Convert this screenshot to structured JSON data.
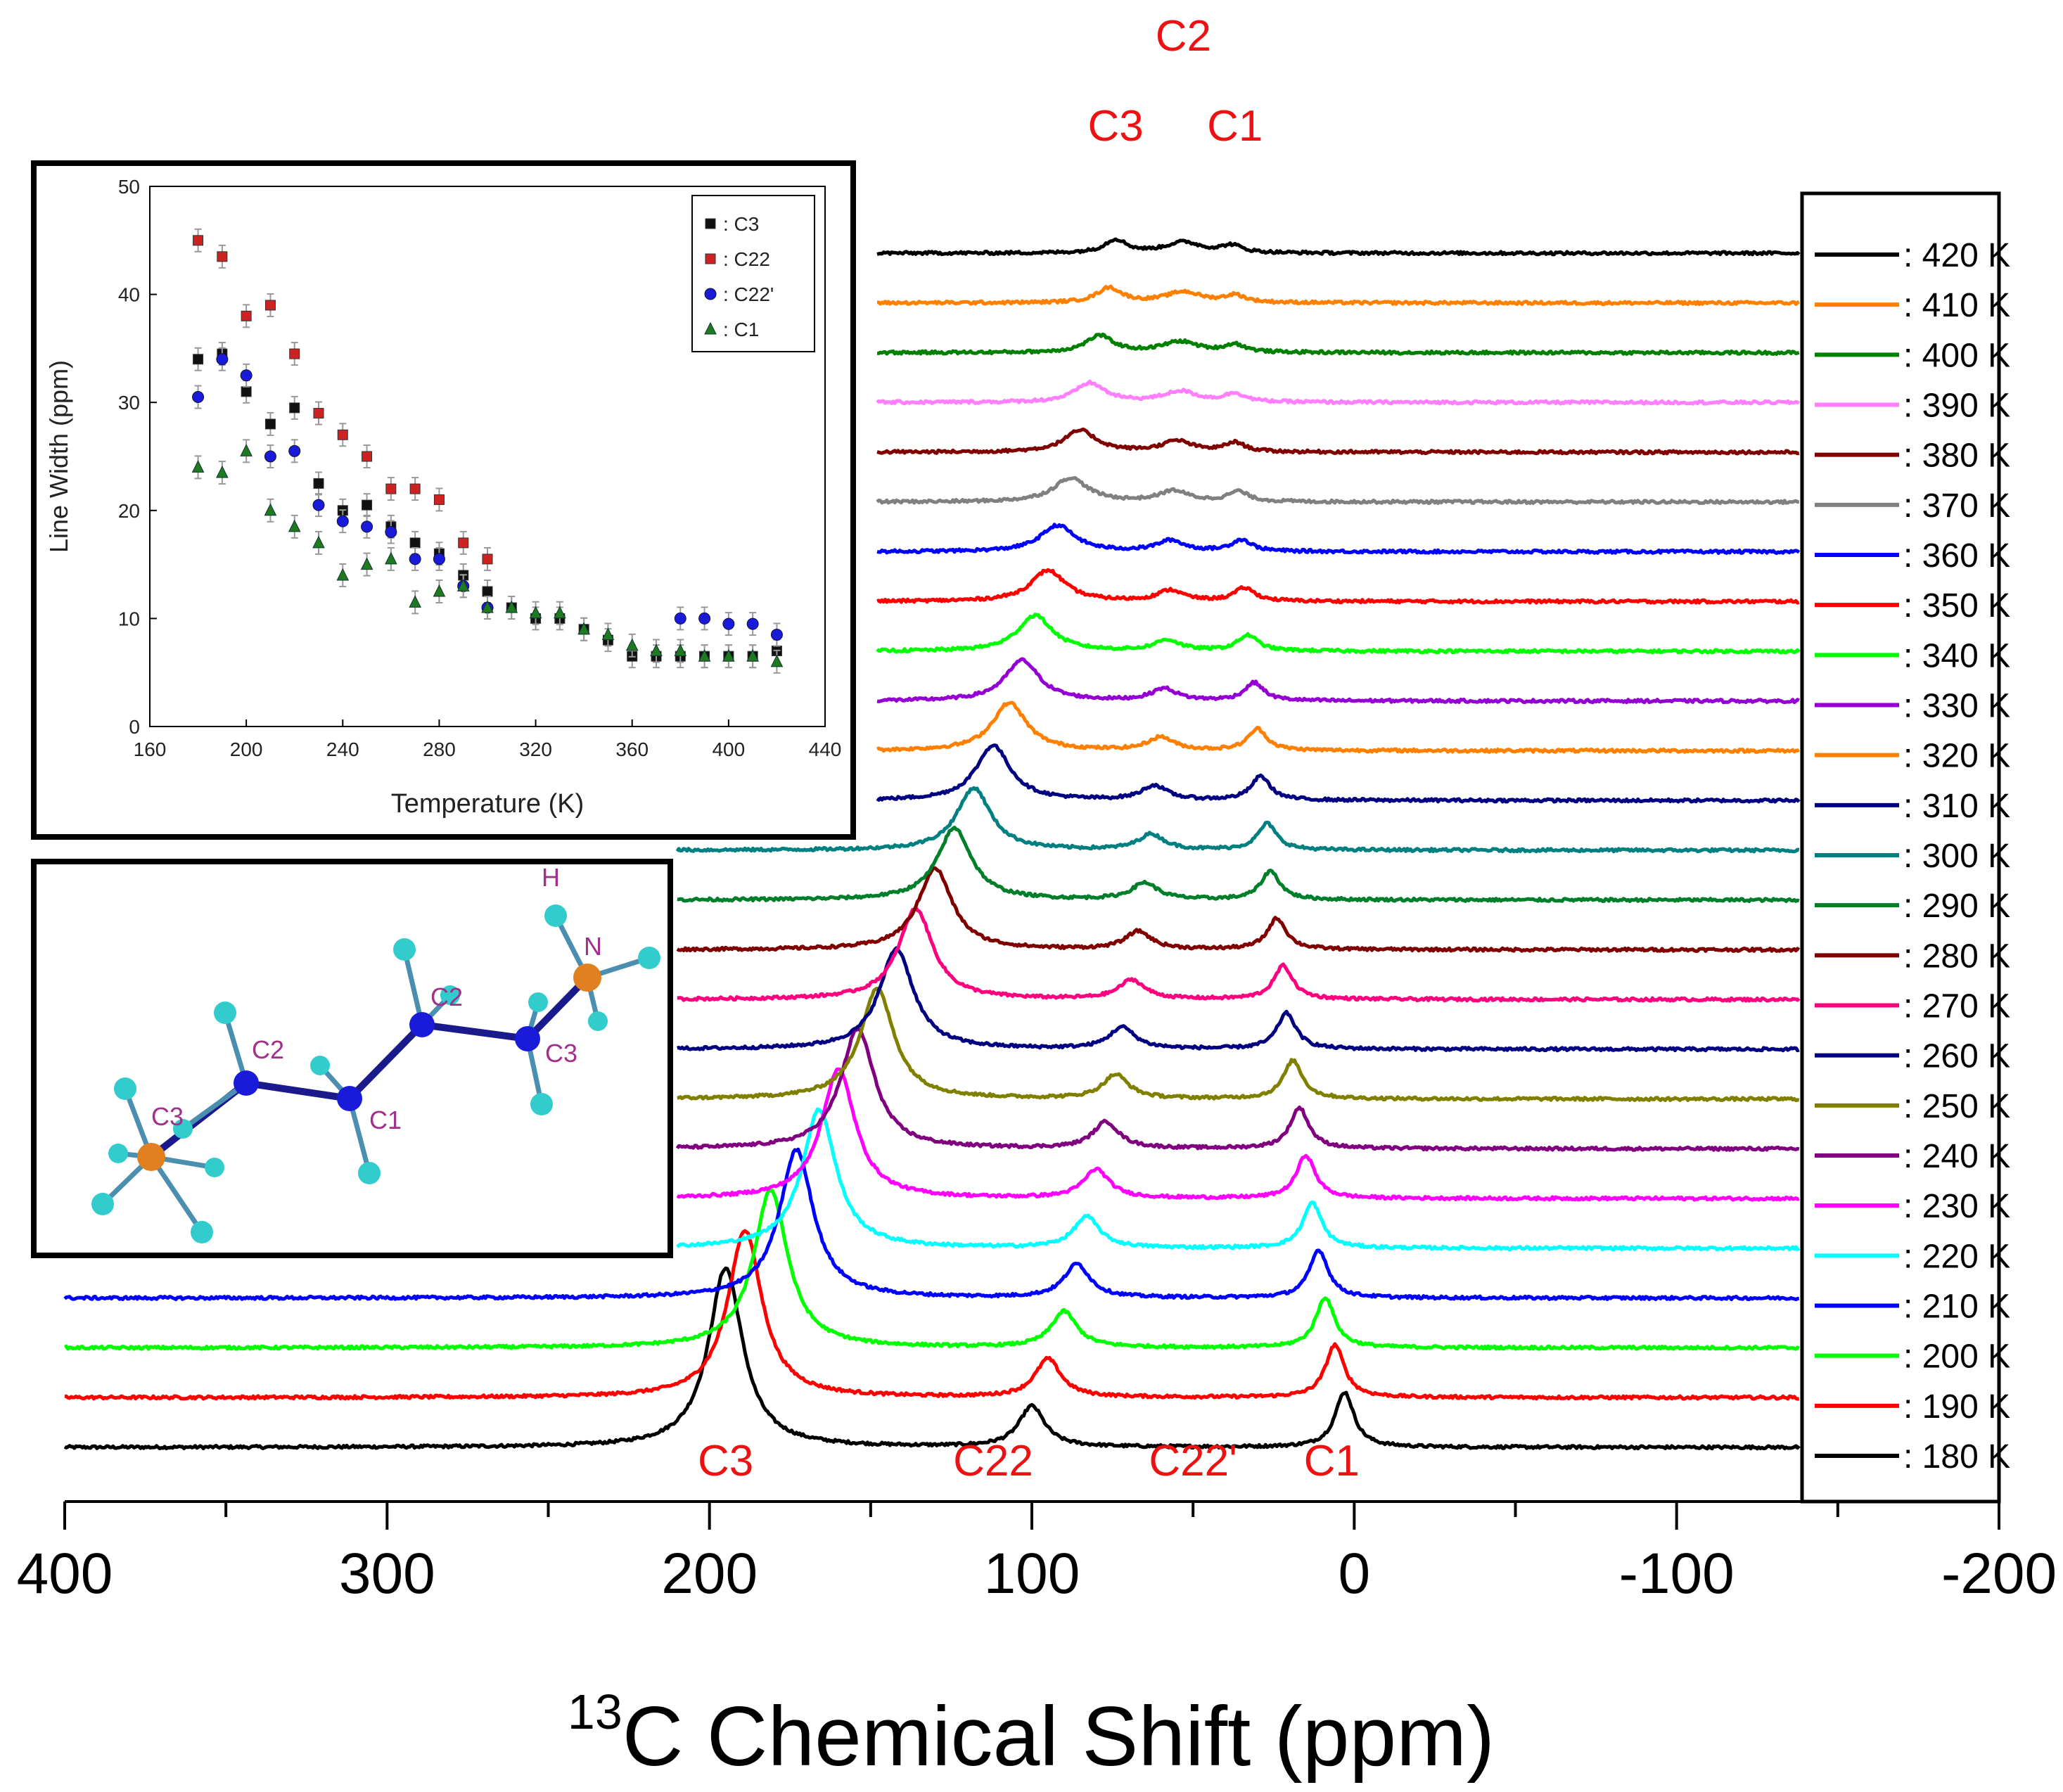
{
  "chart_data": [
    {
      "type": "line",
      "subtype": "stacked-spectra",
      "xlabel_sup": "13",
      "xlabel_rest": "C Chemical Shift (ppm)",
      "xlim": [
        400,
        -200
      ],
      "xticks": [
        400,
        300,
        200,
        100,
        0,
        -100,
        -200
      ],
      "xtick_labels": [
        "400",
        "300",
        "200",
        "100",
        "0",
        "-100",
        "-200"
      ],
      "top_peak_labels": [
        {
          "label": "C3",
          "ppm": 74
        },
        {
          "label": "C2",
          "ppm": 53
        },
        {
          "label": "C1",
          "ppm": 37
        }
      ],
      "bottom_peak_labels": [
        {
          "label": "C3",
          "ppm": 195
        },
        {
          "label": "C22",
          "ppm": 112
        },
        {
          "label": "C22'",
          "ppm": 50
        },
        {
          "label": "C1",
          "ppm": 7
        }
      ],
      "series": [
        {
          "name": ": 420 K",
          "temp": 420,
          "color": "#000000",
          "peaks": [
            [
              74,
              2.6,
              0.55
            ],
            [
              53,
              4.2,
              0.45
            ],
            [
              38,
              2.4,
              0.3
            ]
          ]
        },
        {
          "name": ": 410 K",
          "temp": 410,
          "color": "#ff8000",
          "peaks": [
            [
              76,
              2.9,
              0.62
            ],
            [
              53,
              4.2,
              0.45
            ],
            [
              37,
              2.4,
              0.3
            ]
          ]
        },
        {
          "name": ": 400 K",
          "temp": 400,
          "color": "#008000",
          "peaks": [
            [
              79,
              3.2,
              0.7
            ],
            [
              54,
              4.2,
              0.45
            ],
            [
              37,
              2.4,
              0.32
            ]
          ]
        },
        {
          "name": ": 390 K",
          "temp": 390,
          "color": "#ff7fff",
          "peaks": [
            [
              82,
              3.5,
              0.8
            ],
            [
              54,
              4.0,
              0.45
            ],
            [
              37,
              2.4,
              0.35
            ]
          ]
        },
        {
          "name": ": 380 K",
          "temp": 380,
          "color": "#800000",
          "peaks": [
            [
              85,
              3.8,
              0.9
            ],
            [
              55,
              3.6,
              0.45
            ],
            [
              37,
              2.4,
              0.38
            ]
          ]
        },
        {
          "name": ": 370 K",
          "temp": 370,
          "color": "#808080",
          "peaks": [
            [
              88,
              4.0,
              1.0
            ],
            [
              56,
              3.4,
              0.45
            ],
            [
              36,
              2.4,
              0.42
            ]
          ]
        },
        {
          "name": ": 360 K",
          "temp": 360,
          "color": "#0000ff",
          "peaks": [
            [
              92,
              4.0,
              1.1
            ],
            [
              57,
              3.2,
              0.45
            ],
            [
              35,
              2.4,
              0.48
            ]
          ]
        },
        {
          "name": ": 350 K",
          "temp": 350,
          "color": "#ff0000",
          "peaks": [
            [
              95,
              4.0,
              1.3
            ],
            [
              57,
              3.0,
              0.45
            ],
            [
              34,
              2.4,
              0.55
            ]
          ]
        },
        {
          "name": ": 340 K",
          "temp": 340,
          "color": "#00ff00",
          "peaks": [
            [
              99,
              4.0,
              1.5
            ],
            [
              58,
              3.0,
              0.45
            ],
            [
              33,
              2.4,
              0.65
            ]
          ]
        },
        {
          "name": ": 330 K",
          "temp": 330,
          "color": "#9400d3",
          "peaks": [
            [
              103,
              4.0,
              1.7
            ],
            [
              59,
              3.0,
              0.5
            ],
            [
              31,
              2.2,
              0.75
            ]
          ]
        },
        {
          "name": ": 320 K",
          "temp": 320,
          "color": "#ff8000",
          "peaks": [
            [
              107,
              4.0,
              2.0
            ],
            [
              60,
              3.0,
              0.55
            ],
            [
              30,
              2.2,
              0.9
            ]
          ]
        },
        {
          "name": ": 310 K",
          "temp": 310,
          "color": "#000080",
          "peaks": [
            [
              112,
              4.0,
              2.3
            ],
            [
              62,
              3.0,
              0.6
            ],
            [
              29,
              2.2,
              1.0
            ]
          ]
        },
        {
          "name": ": 300 K",
          "temp": 300,
          "color": "#008080",
          "peaks": [
            [
              118,
              4.0,
              2.6
            ],
            [
              63,
              3.0,
              0.65
            ],
            [
              27,
              2.2,
              1.1
            ]
          ]
        },
        {
          "name": ": 290 K",
          "temp": 290,
          "color": "#007f2a",
          "peaks": [
            [
              124,
              4.0,
              3.0
            ],
            [
              65,
              3.0,
              0.7
            ],
            [
              26,
              2.2,
              1.2
            ]
          ]
        },
        {
          "name": ": 280 K",
          "temp": 280,
          "color": "#800000",
          "peaks": [
            [
              130,
              4.0,
              3.4
            ],
            [
              67,
              3.0,
              0.75
            ],
            [
              24,
              2.2,
              1.3
            ]
          ]
        },
        {
          "name": ": 270 K",
          "temp": 270,
          "color": "#ff007f",
          "peaks": [
            [
              136,
              4.0,
              3.8
            ],
            [
              69,
              3.0,
              0.8
            ],
            [
              22,
              2.2,
              1.4
            ]
          ]
        },
        {
          "name": ": 260 K",
          "temp": 260,
          "color": "#000080",
          "peaks": [
            [
              142,
              4.0,
              4.2
            ],
            [
              72,
              3.0,
              0.9
            ],
            [
              21,
              2.2,
              1.5
            ]
          ]
        },
        {
          "name": ": 250 K",
          "temp": 250,
          "color": "#808000",
          "peaks": [
            [
              148,
              4.0,
              4.6
            ],
            [
              74,
              3.0,
              1.0
            ],
            [
              19,
              2.2,
              1.6
            ]
          ]
        },
        {
          "name": ": 240 K",
          "temp": 240,
          "color": "#800080",
          "peaks": [
            [
              154,
              4.0,
              5.0
            ],
            [
              77,
              3.0,
              1.1
            ],
            [
              17,
              2.2,
              1.7
            ]
          ]
        },
        {
          "name": ": 230 K",
          "temp": 230,
          "color": "#ff00ff",
          "peaks": [
            [
              160,
              4.0,
              5.4
            ],
            [
              80,
              3.0,
              1.2
            ],
            [
              15,
              2.2,
              1.8
            ]
          ]
        },
        {
          "name": ": 220 K",
          "temp": 220,
          "color": "#00ffff",
          "peaks": [
            [
              166,
              4.0,
              5.8
            ],
            [
              83,
              3.0,
              1.3
            ],
            [
              13,
              2.2,
              1.9
            ]
          ]
        },
        {
          "name": ": 210 K",
          "temp": 210,
          "color": "#0000ff",
          "peaks": [
            [
              173,
              4.0,
              6.2
            ],
            [
              86,
              3.0,
              1.4
            ],
            [
              11,
              2.2,
              2.0
            ]
          ]
        },
        {
          "name": ": 200 K",
          "temp": 200,
          "color": "#00ff00",
          "peaks": [
            [
              181,
              4.0,
              6.6
            ],
            [
              90,
              3.0,
              1.5
            ],
            [
              9,
              2.2,
              2.1
            ]
          ]
        },
        {
          "name": ": 190 K",
          "temp": 190,
          "color": "#ff0000",
          "peaks": [
            [
              189,
              4.0,
              7.0
            ],
            [
              95,
              3.0,
              1.6
            ],
            [
              6,
              2.2,
              2.2
            ]
          ]
        },
        {
          "name": ": 180 K",
          "temp": 180,
          "color": "#000000",
          "peaks": [
            [
              195,
              4.0,
              7.5
            ],
            [
              100,
              3.0,
              1.7
            ],
            [
              3,
              2.2,
              2.3
            ]
          ]
        }
      ]
    },
    {
      "type": "scatter",
      "xlabel": "Temperature (K)",
      "ylabel": "Line Width (ppm)",
      "xlim": [
        160,
        440
      ],
      "ylim": [
        0,
        50
      ],
      "xticks": [
        "160",
        "200",
        "240",
        "280",
        "320",
        "360",
        "400",
        "440"
      ],
      "yticks": [
        "0",
        "10",
        "20",
        "30",
        "40",
        "50"
      ],
      "legend_position": "top-right",
      "series": [
        {
          "name": ": C3",
          "marker": "square",
          "color": "#111111",
          "points": [
            [
              180,
              34
            ],
            [
              190,
              34.5
            ],
            [
              200,
              31
            ],
            [
              210,
              28
            ],
            [
              220,
              29.5
            ],
            [
              230,
              22.5
            ],
            [
              240,
              20
            ],
            [
              250,
              20.5
            ],
            [
              260,
              18.5
            ],
            [
              270,
              17
            ],
            [
              280,
              16
            ],
            [
              290,
              14
            ],
            [
              300,
              12.5
            ],
            [
              310,
              11
            ],
            [
              320,
              10
            ],
            [
              330,
              10
            ],
            [
              340,
              9
            ],
            [
              350,
              8
            ],
            [
              360,
              6.5
            ],
            [
              370,
              6.5
            ],
            [
              380,
              6.5
            ],
            [
              390,
              6.5
            ],
            [
              400,
              6.5
            ],
            [
              410,
              6.5
            ],
            [
              420,
              7
            ]
          ]
        },
        {
          "name": ": C22",
          "marker": "square",
          "color": "#cc2222",
          "points": [
            [
              180,
              45
            ],
            [
              190,
              43.5
            ],
            [
              200,
              38
            ],
            [
              210,
              39
            ],
            [
              220,
              34.5
            ],
            [
              230,
              29
            ],
            [
              240,
              27
            ],
            [
              250,
              25
            ],
            [
              260,
              22
            ],
            [
              270,
              22
            ],
            [
              280,
              21
            ],
            [
              290,
              17
            ],
            [
              300,
              15.5
            ]
          ]
        },
        {
          "name": ": C22'",
          "marker": "circle",
          "color": "#1a1ad9",
          "points": [
            [
              180,
              30.5
            ],
            [
              190,
              34
            ],
            [
              200,
              32.5
            ],
            [
              210,
              25
            ],
            [
              220,
              25.5
            ],
            [
              230,
              20.5
            ],
            [
              240,
              19
            ],
            [
              250,
              18.5
            ],
            [
              260,
              18
            ],
            [
              270,
              15.5
            ],
            [
              280,
              15.5
            ],
            [
              290,
              13
            ],
            [
              300,
              11
            ],
            [
              380,
              10
            ],
            [
              390,
              10
            ],
            [
              400,
              9.5
            ],
            [
              410,
              9.5
            ],
            [
              420,
              8.5
            ]
          ]
        },
        {
          "name": ": C1",
          "marker": "triangle",
          "color": "#1f7a1f",
          "points": [
            [
              180,
              24
            ],
            [
              190,
              23.5
            ],
            [
              200,
              25.5
            ],
            [
              210,
              20
            ],
            [
              220,
              18.5
            ],
            [
              230,
              17
            ],
            [
              240,
              14
            ],
            [
              250,
              15
            ],
            [
              260,
              15.5
            ],
            [
              270,
              11.5
            ],
            [
              280,
              12.5
            ],
            [
              290,
              13
            ],
            [
              300,
              11
            ],
            [
              310,
              11
            ],
            [
              320,
              10.5
            ],
            [
              330,
              10.5
            ],
            [
              340,
              9
            ],
            [
              350,
              8.5
            ],
            [
              360,
              7.5
            ],
            [
              370,
              7
            ],
            [
              380,
              7
            ],
            [
              390,
              6.5
            ],
            [
              400,
              6.5
            ],
            [
              410,
              6.5
            ],
            [
              420,
              6
            ]
          ]
        }
      ]
    }
  ],
  "molecule": {
    "atoms": [
      {
        "label": "H"
      },
      {
        "label": "N"
      },
      {
        "label": "C2"
      },
      {
        "label": "C3"
      },
      {
        "label": "C2"
      },
      {
        "label": "C1"
      },
      {
        "label": "C3"
      }
    ]
  }
}
